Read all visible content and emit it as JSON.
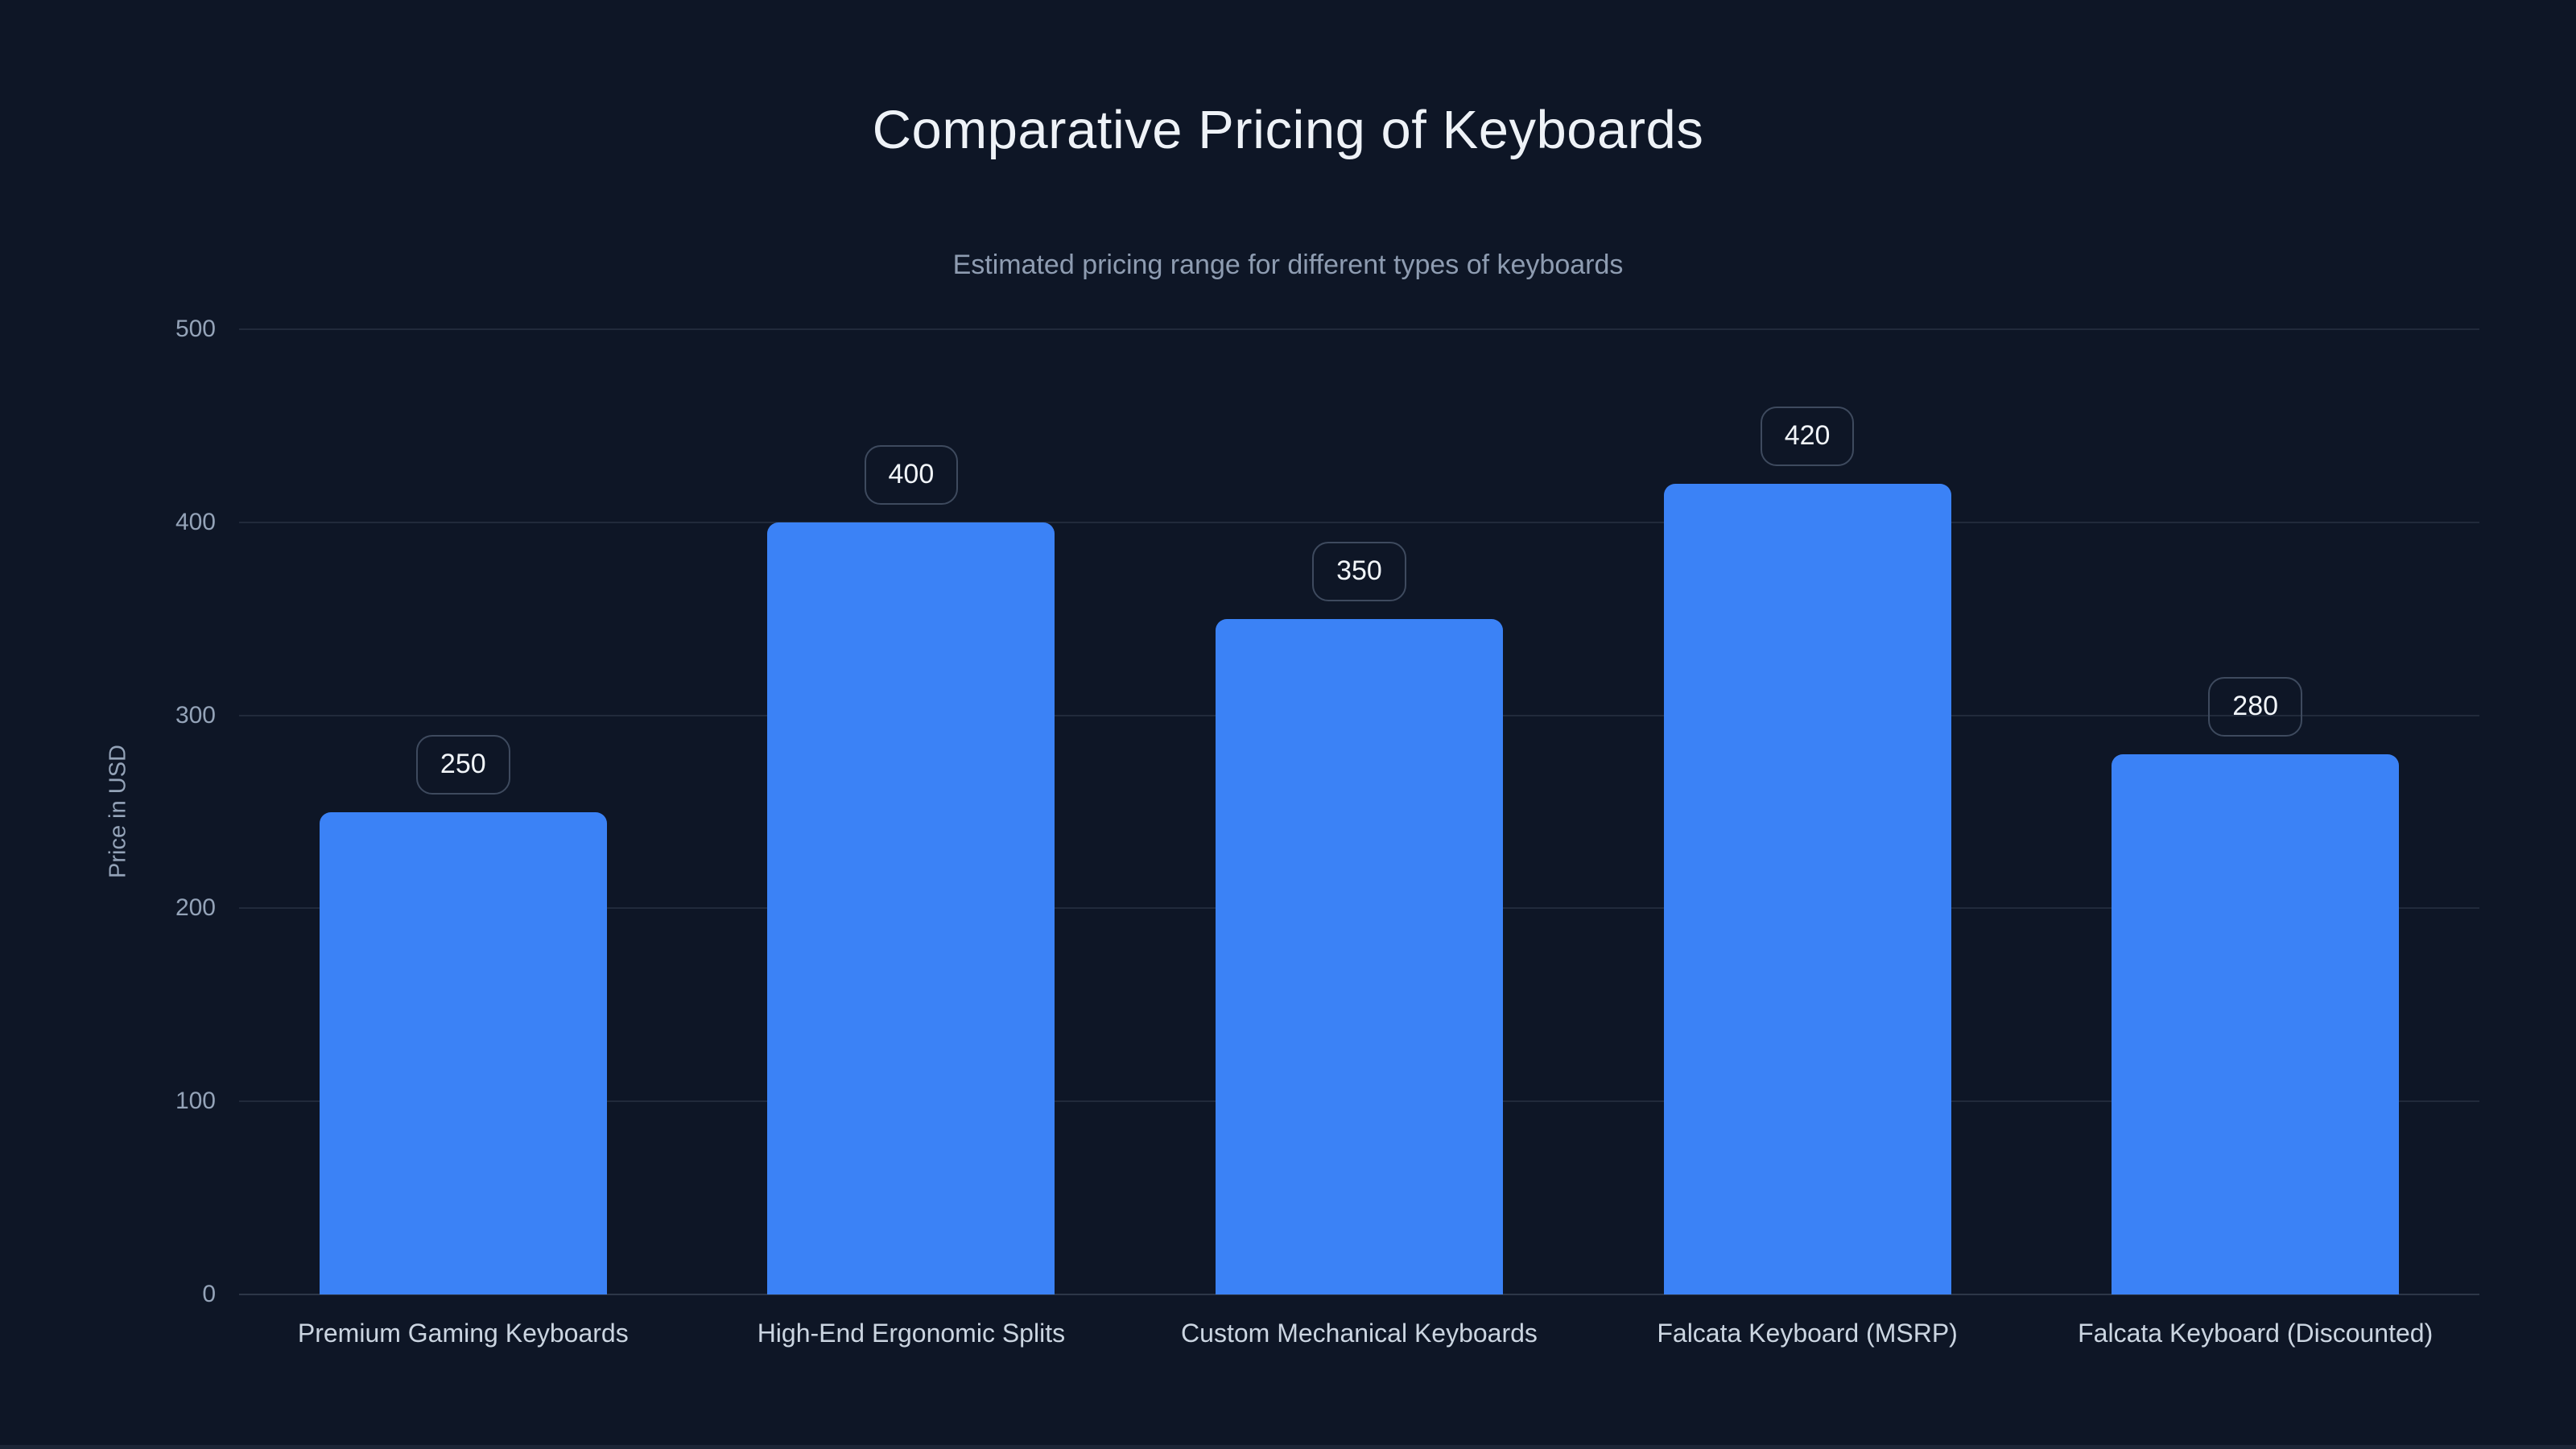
{
  "header": {
    "title": "Comparative Pricing of Keyboards",
    "subtitle": "Estimated pricing range for different types of keyboards"
  },
  "chart_data": {
    "type": "bar",
    "title": "Comparative Pricing of Keyboards",
    "subtitle": "Estimated pricing range for different types of keyboards",
    "categories": [
      "Premium Gaming Keyboards",
      "High-End Ergonomic Splits",
      "Custom Mechanical Keyboards",
      "Falcata Keyboard (MSRP)",
      "Falcata Keyboard (Discounted)"
    ],
    "values": [
      250,
      400,
      350,
      420,
      280
    ],
    "value_labels": [
      "250",
      "400",
      "350",
      "420",
      "280"
    ],
    "xlabel": "",
    "ylabel": "Price in USD",
    "ylim": [
      0,
      500
    ],
    "yticks": [
      0,
      100,
      200,
      300,
      400,
      500
    ],
    "grid": "horizontal-only",
    "legend": "none",
    "colors": {
      "background": "#0e1626",
      "bar_fill": "#3b82f6",
      "grid_line": "rgba(148,163,184,0.15)",
      "grid_line_strong": "rgba(148,163,184,0.24)",
      "tick_text": "#94a3b8",
      "category_text": "#cbd5e1",
      "title_text": "#eef2f7",
      "subtitle_text": "#8e9cb1",
      "badge_border": "#3e4a5e",
      "badge_text": "#f1f5f9"
    }
  }
}
